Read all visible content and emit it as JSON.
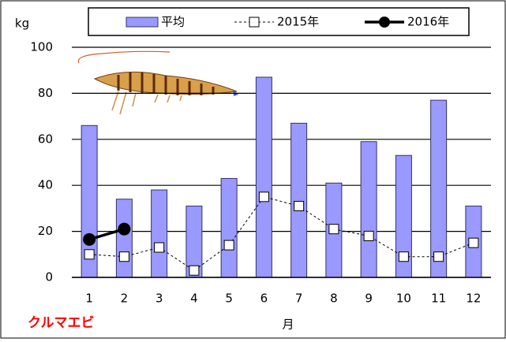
{
  "chart_data": {
    "type": "bar",
    "y_label": "kg",
    "x_label": "月",
    "annotation": "クルマエビ",
    "categories": [
      "1",
      "2",
      "3",
      "4",
      "5",
      "6",
      "7",
      "8",
      "9",
      "10",
      "11",
      "12"
    ],
    "series": [
      {
        "name": "平均",
        "type": "bar",
        "color": "#9999ff",
        "values": [
          66,
          34,
          38,
          31,
          43,
          87,
          67,
          41,
          59,
          53,
          77,
          31
        ]
      },
      {
        "name": "2015年",
        "type": "line",
        "color": "#000000",
        "marker": "square",
        "line_style": "dashed",
        "values": [
          10,
          9,
          13,
          3,
          14,
          35,
          31,
          21,
          18,
          9,
          9,
          15
        ]
      },
      {
        "name": "2016年",
        "type": "line",
        "color": "#000000",
        "marker": "circle",
        "line_style": "solid",
        "values": [
          16.5,
          21,
          null,
          null,
          null,
          null,
          null,
          null,
          null,
          null,
          null,
          null
        ]
      }
    ],
    "ylim": [
      0,
      100
    ],
    "yticks": [
      0,
      20,
      40,
      60,
      80,
      100
    ],
    "grid": true,
    "legend": "top"
  }
}
